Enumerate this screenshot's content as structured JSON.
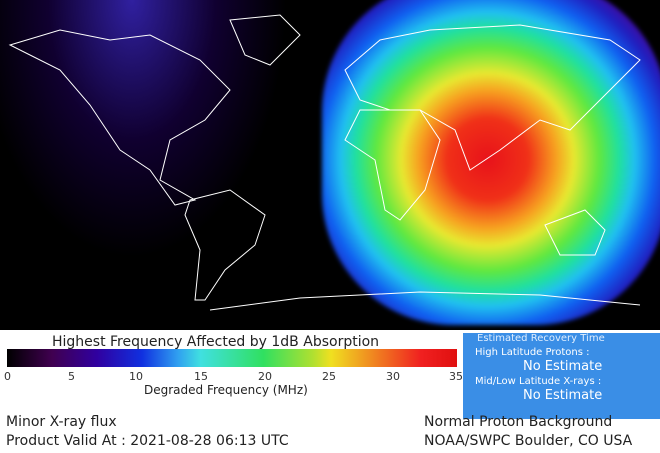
{
  "colorbar": {
    "title": "Highest Frequency Affected by 1dB Absorption",
    "xlabel": "Degraded Frequency (MHz)",
    "ticks": [
      "0",
      "5",
      "10",
      "15",
      "20",
      "25",
      "30",
      "35"
    ],
    "range": [
      0,
      35
    ]
  },
  "recovery": {
    "title": "Estimated Recovery Time",
    "high_label": "High Latitude Protons :",
    "high_value": "No Estimate",
    "mid_label": "Mid/Low Latitude X-rays :",
    "mid_value": "No Estimate",
    "bg": "#3a8ee6"
  },
  "status": {
    "xray": "Minor X-ray flux",
    "valid": "Product Valid At : 2021-08-28 06:13 UTC",
    "proton": "Normal Proton Background",
    "source": "NOAA/SWPC Boulder, CO USA"
  }
}
